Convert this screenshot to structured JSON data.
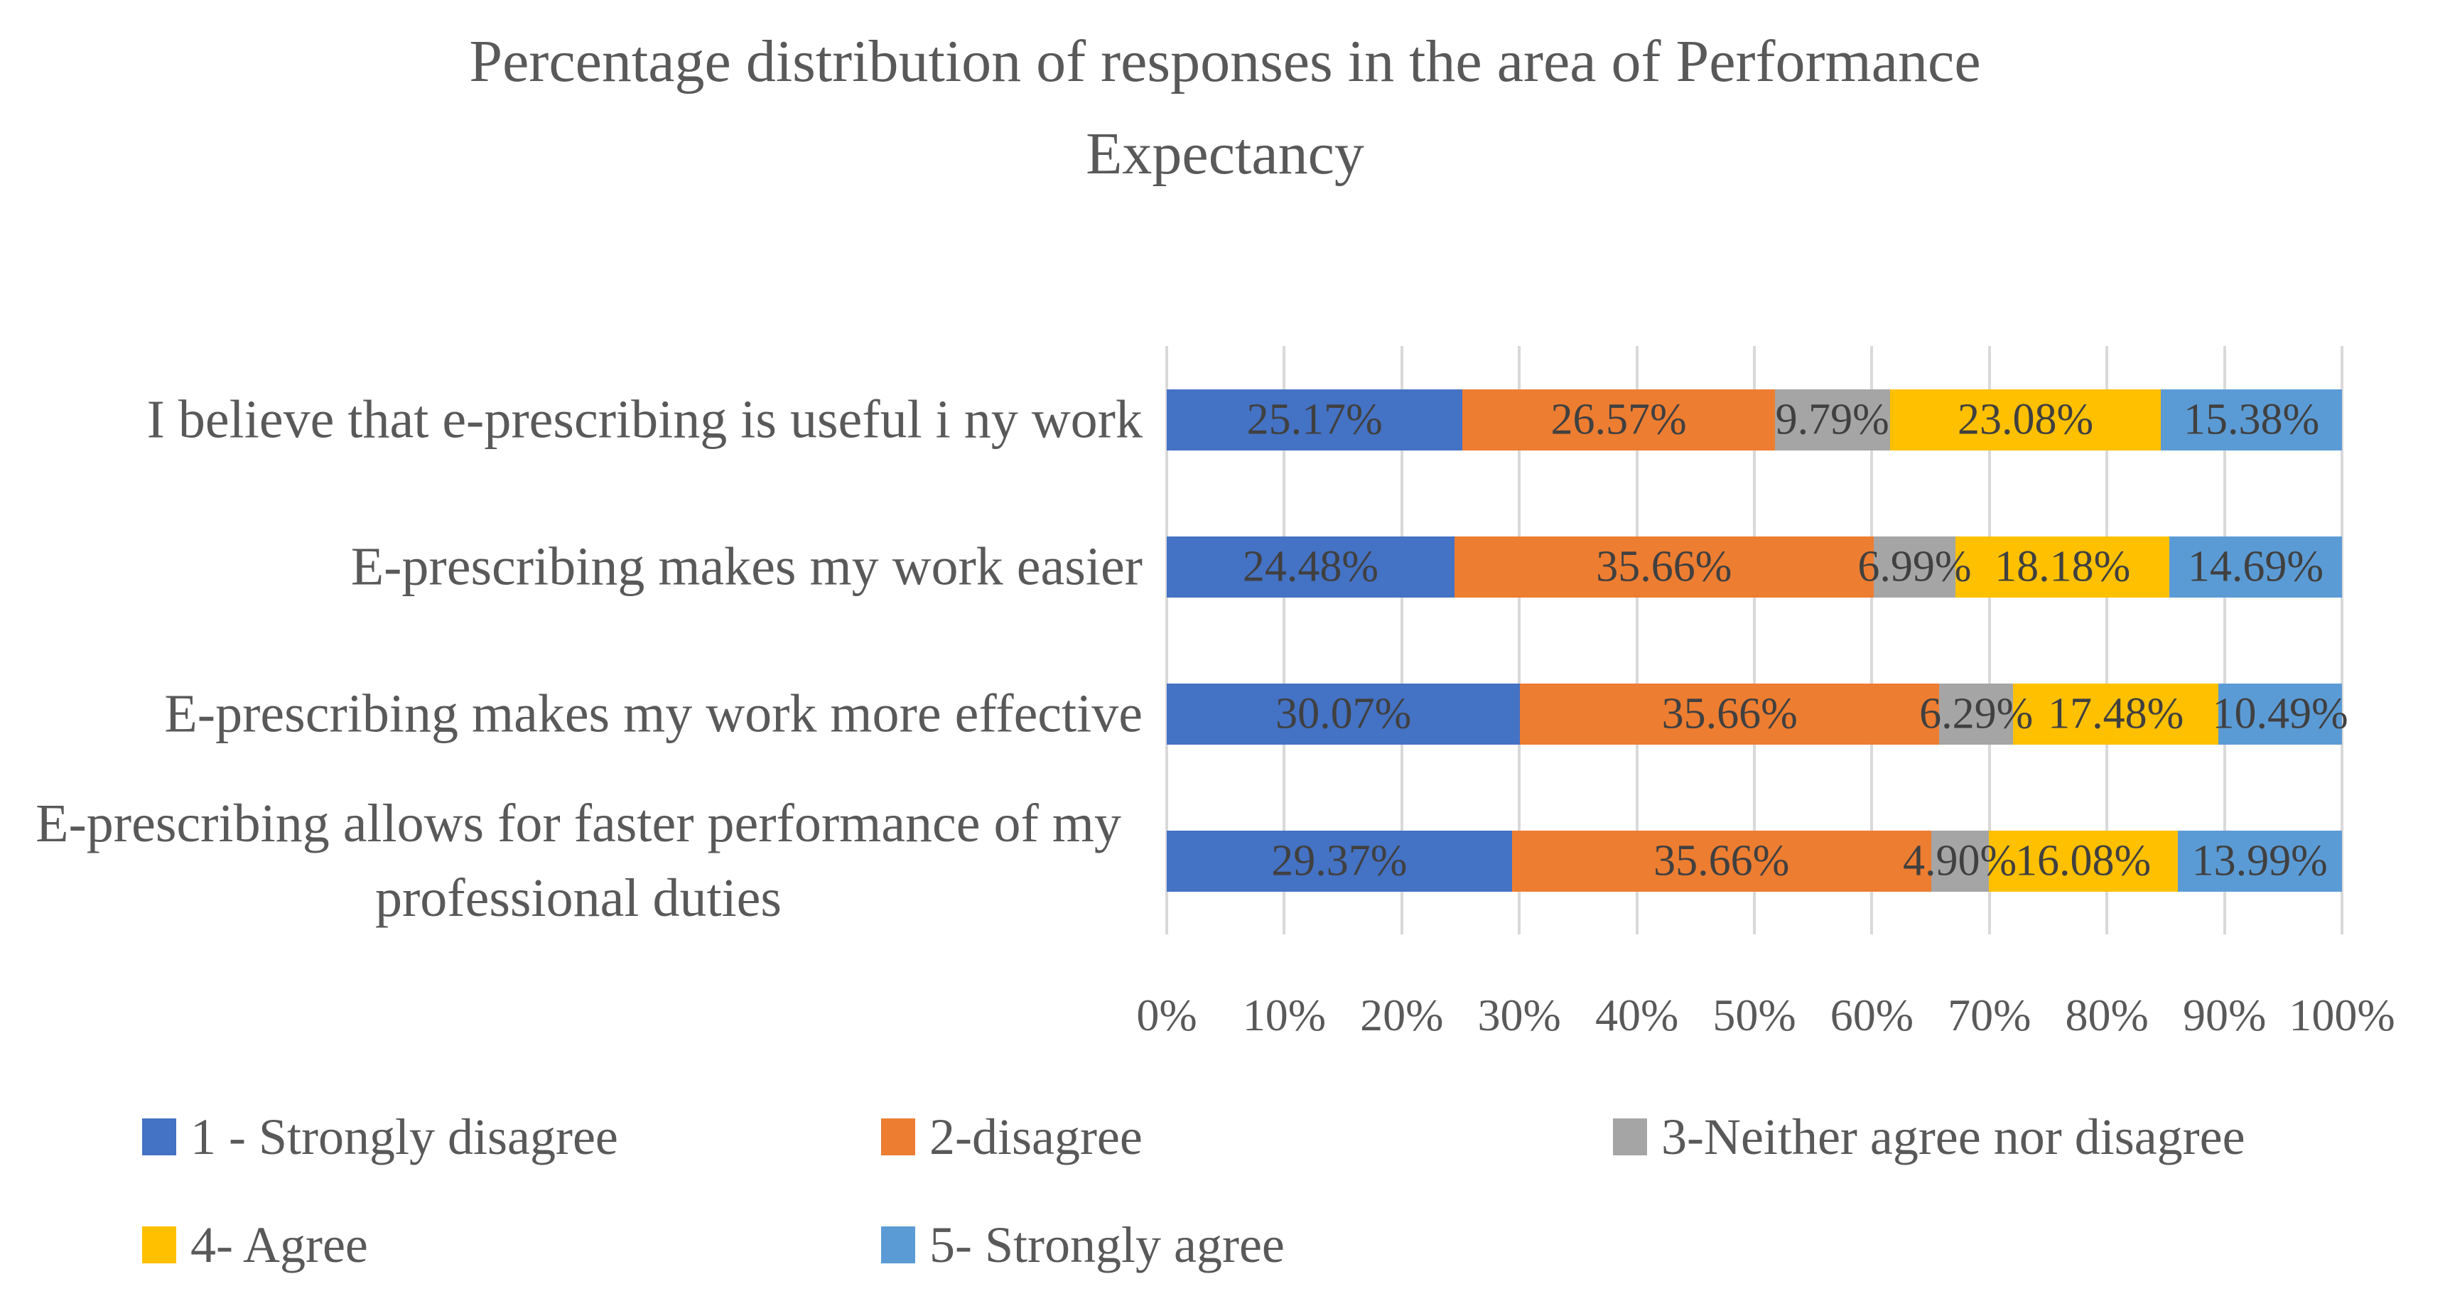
{
  "title": {
    "lines": [
      "Percentage distribution of responses in the area of Performance",
      "Expectancy"
    ],
    "full_text": "Percentage distribution of responses in the area of Performance Expectancy"
  },
  "chart_data": {
    "type": "bar",
    "orientation": "horizontal",
    "stacked": true,
    "title": "Percentage distribution of responses in the area of Performance Expectancy",
    "categories": [
      "I believe that e-prescribing is useful i ny work",
      "E-prescribing makes my work easier",
      "E-prescribing makes my work more effective",
      "E-prescribing allows for faster performance of my professional duties"
    ],
    "series": [
      {
        "name": "1 - Strongly disagree",
        "color": "#4472C4",
        "values": [
          25.17,
          24.48,
          30.07,
          29.37
        ],
        "labels": [
          "25.17%",
          "24.48%",
          "30.07%",
          "29.37%"
        ]
      },
      {
        "name": "2-disagree",
        "color": "#ED7D31",
        "values": [
          26.57,
          35.66,
          35.66,
          35.66
        ],
        "labels": [
          "26.57%",
          "35.66%",
          "35.66%",
          "35.66%"
        ]
      },
      {
        "name": "3-Neither agree nor disagree",
        "color": "#A5A5A5",
        "values": [
          9.79,
          6.99,
          6.29,
          4.9
        ],
        "labels": [
          "9.79%",
          "6.99%",
          "6.29%",
          "4.90%"
        ]
      },
      {
        "name": "4- Agree",
        "color": "#FFC000",
        "values": [
          23.08,
          18.18,
          17.48,
          16.08
        ],
        "labels": [
          "23.08%",
          "18.18%",
          "17.48%",
          "16.08%"
        ]
      },
      {
        "name": "5- Strongly agree",
        "color": "#5B9BD5",
        "values": [
          15.38,
          14.69,
          10.49,
          13.99
        ],
        "labels": [
          "15.38%",
          "14.69%",
          "10.49%",
          "13.99%"
        ]
      }
    ],
    "x_ticks": [
      "0%",
      "10%",
      "20%",
      "30%",
      "40%",
      "50%",
      "60%",
      "70%",
      "80%",
      "90%",
      "100%"
    ],
    "xlim": [
      0,
      100
    ],
    "grid": "vertical-only",
    "gridline_color": "#D9D9D9",
    "legend_position": "bottom",
    "data_label_color": "#404040",
    "axis_text_color": "#595959"
  }
}
